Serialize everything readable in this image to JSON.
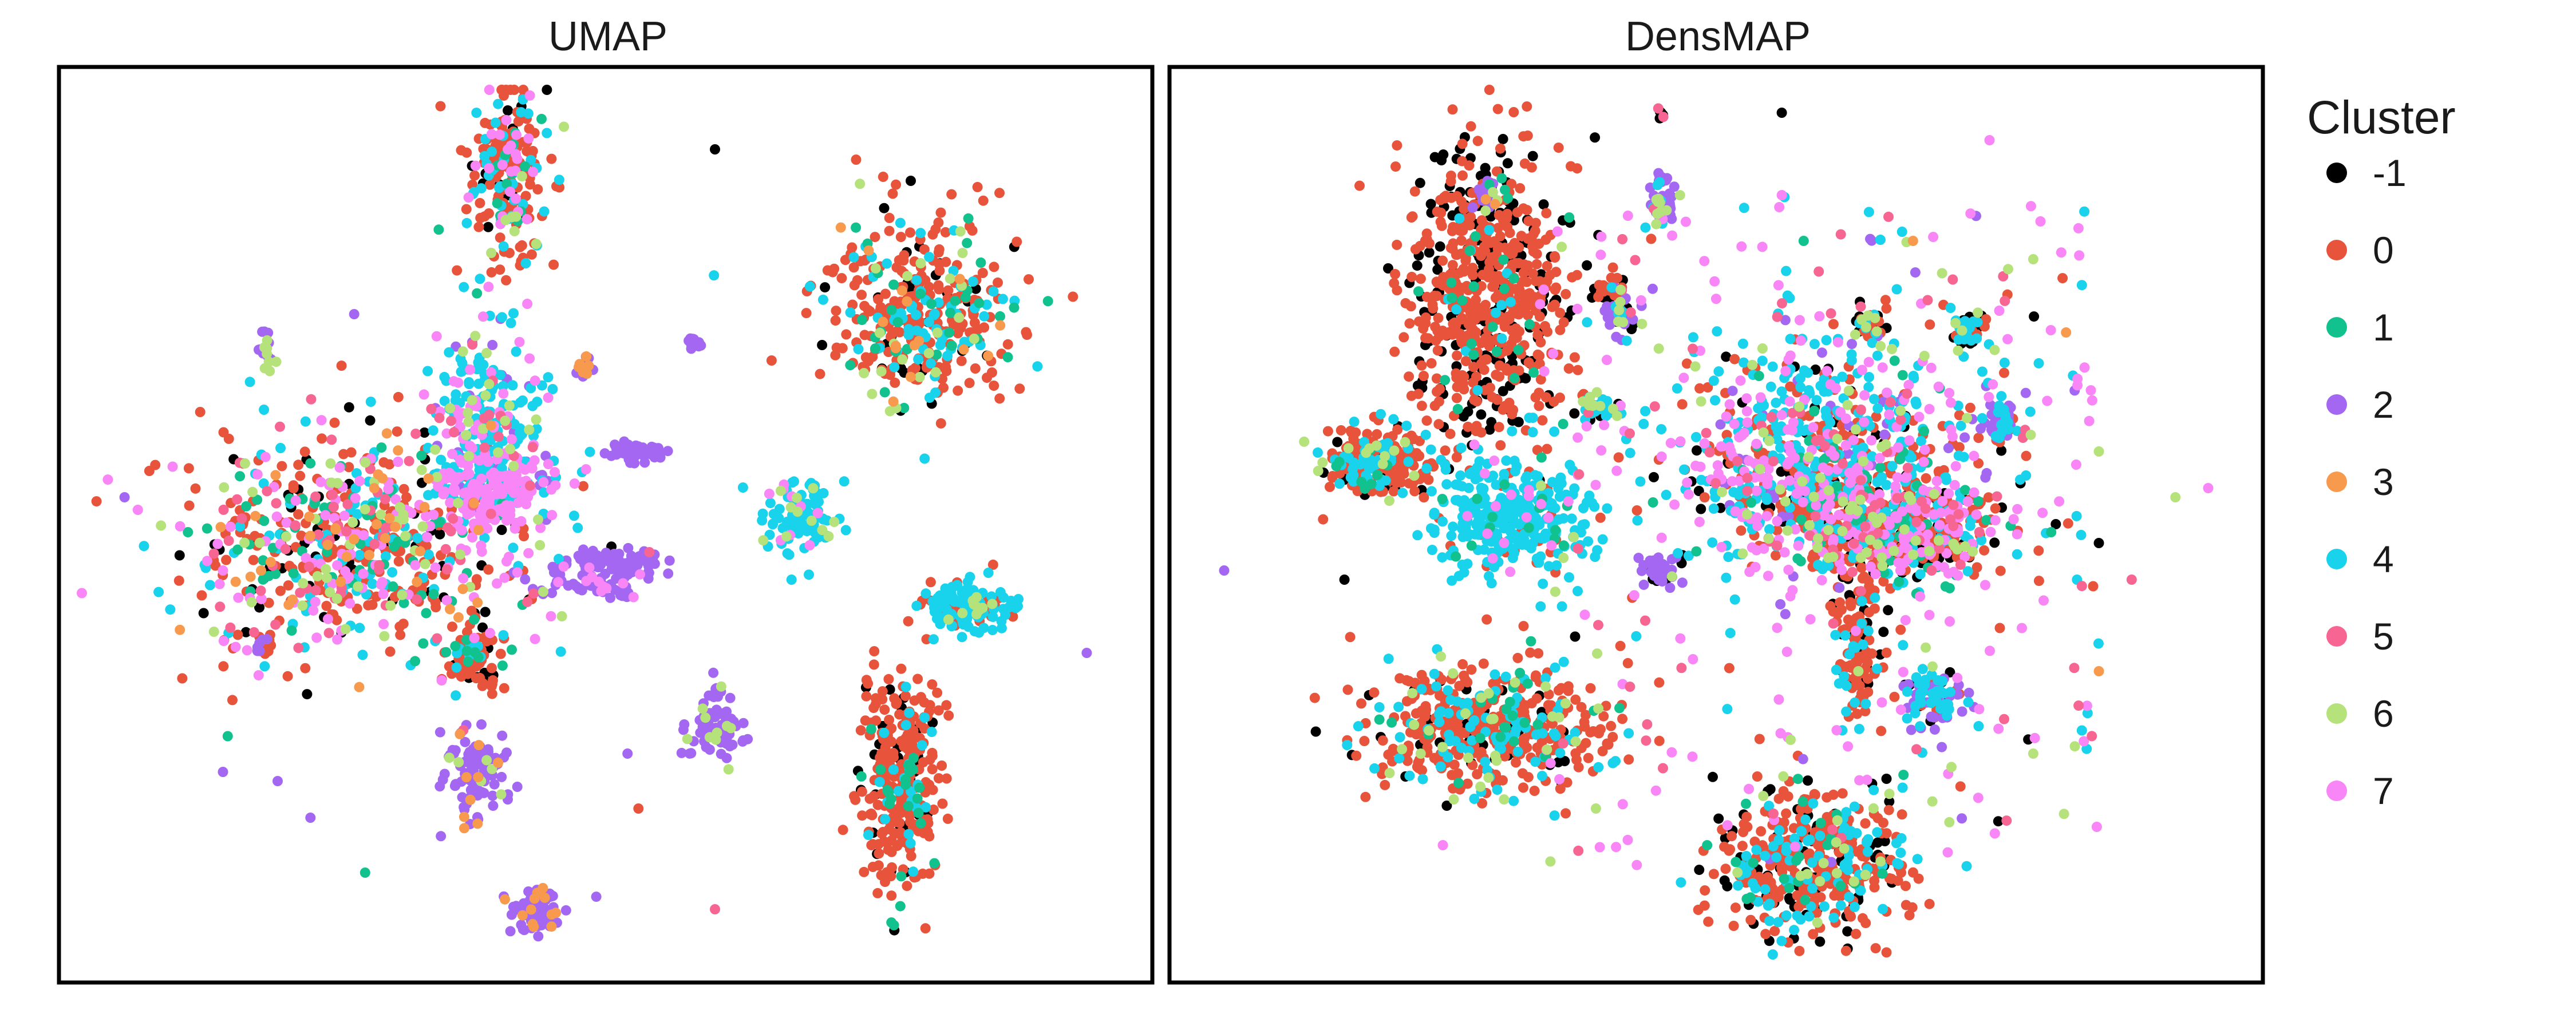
{
  "chart_data": [
    {
      "type": "scatter",
      "title": "UMAP",
      "grid": false,
      "clusters": [
        {
          "center": [
            0.41,
            0.12
          ],
          "spread": [
            0.018,
            0.05
          ],
          "n": 220,
          "mix": {
            "0": 0.5,
            "-1": 0.08,
            "4": 0.2,
            "7": 0.1,
            "1": 0.06,
            "6": 0.06
          }
        },
        {
          "center": [
            0.78,
            0.27
          ],
          "spread": [
            0.045,
            0.05
          ],
          "n": 420,
          "mix": {
            "0": 0.6,
            "-1": 0.08,
            "4": 0.15,
            "1": 0.07,
            "6": 0.05,
            "3": 0.05
          }
        },
        {
          "center": [
            0.27,
            0.52
          ],
          "spread": [
            0.075,
            0.06
          ],
          "n": 700,
          "mix": {
            "0": 0.3,
            "-1": 0.08,
            "4": 0.15,
            "7": 0.15,
            "1": 0.1,
            "5": 0.1,
            "6": 0.06,
            "3": 0.06
          }
        },
        {
          "center": [
            0.4,
            0.46
          ],
          "spread": [
            0.03,
            0.025
          ],
          "n": 220,
          "mix": {
            "7": 0.6,
            "4": 0.3,
            "2": 0.1
          }
        },
        {
          "center": [
            0.39,
            0.38
          ],
          "spread": [
            0.025,
            0.05
          ],
          "n": 220,
          "mix": {
            "4": 0.55,
            "7": 0.15,
            "5": 0.1,
            "6": 0.1,
            "2": 0.1
          }
        },
        {
          "center": [
            0.68,
            0.49
          ],
          "spread": [
            0.016,
            0.018
          ],
          "n": 110,
          "mix": {
            "4": 0.8,
            "6": 0.1,
            "7": 0.1
          }
        },
        {
          "center": [
            0.83,
            0.59
          ],
          "spread": [
            0.022,
            0.015
          ],
          "n": 140,
          "mix": {
            "4": 0.6,
            "0": 0.3,
            "6": 0.1
          }
        },
        {
          "center": [
            0.77,
            0.78
          ],
          "spread": [
            0.018,
            0.06
          ],
          "n": 320,
          "mix": {
            "0": 0.75,
            "-1": 0.1,
            "4": 0.08,
            "1": 0.07
          }
        },
        {
          "center": [
            0.38,
            0.65
          ],
          "spread": [
            0.012,
            0.015
          ],
          "n": 80,
          "mix": {
            "0": 0.7,
            "-1": 0.1,
            "1": 0.1,
            "4": 0.1
          }
        },
        {
          "center": [
            0.38,
            0.77
          ],
          "spread": [
            0.013,
            0.022
          ],
          "n": 110,
          "mix": {
            "2": 0.85,
            "3": 0.08,
            "6": 0.07
          }
        },
        {
          "center": [
            0.6,
            0.72
          ],
          "spread": [
            0.012,
            0.02
          ],
          "n": 80,
          "mix": {
            "2": 0.85,
            "6": 0.15
          }
        },
        {
          "center": [
            0.44,
            0.92
          ],
          "spread": [
            0.012,
            0.015
          ],
          "n": 70,
          "mix": {
            "2": 0.85,
            "3": 0.15
          }
        },
        {
          "center": [
            0.51,
            0.54
          ],
          "spread": [
            0.025,
            0.006
          ],
          "n": 60,
          "mix": {
            "2": 1.0
          }
        },
        {
          "center": [
            0.48,
            0.56
          ],
          "spread": [
            0.03,
            0.01
          ],
          "n": 70,
          "mix": {
            "2": 0.8,
            "7": 0.2
          }
        },
        {
          "center": [
            0.53,
            0.42
          ],
          "spread": [
            0.015,
            0.005
          ],
          "n": 40,
          "mix": {
            "2": 1.0
          }
        },
        {
          "center": [
            0.19,
            0.31
          ],
          "spread": [
            0.004,
            0.01
          ],
          "n": 20,
          "mix": {
            "2": 0.7,
            "6": 0.3
          }
        },
        {
          "center": [
            0.48,
            0.33
          ],
          "spread": [
            0.004,
            0.006
          ],
          "n": 18,
          "mix": {
            "2": 0.7,
            "3": 0.3
          }
        },
        {
          "center": [
            0.58,
            0.3
          ],
          "spread": [
            0.004,
            0.005
          ],
          "n": 12,
          "mix": {
            "2": 1.0
          }
        },
        {
          "center": [
            0.19,
            0.63
          ],
          "spread": [
            0.006,
            0.01
          ],
          "n": 18,
          "mix": {
            "2": 0.6,
            "0": 0.4
          }
        }
      ],
      "outliers": [
        {
          "x": 0.6,
          "y": 0.09,
          "cluster": "-1"
        },
        {
          "x": 0.06,
          "y": 0.47,
          "cluster": "2"
        },
        {
          "x": 0.15,
          "y": 0.55,
          "cluster": "7"
        },
        {
          "x": 0.27,
          "y": 0.27,
          "cluster": "2"
        },
        {
          "x": 0.54,
          "y": 0.53,
          "cluster": "5"
        },
        {
          "x": 0.94,
          "y": 0.64,
          "cluster": "2"
        },
        {
          "x": 0.15,
          "y": 0.77,
          "cluster": "2"
        },
        {
          "x": 0.2,
          "y": 0.78,
          "cluster": "2"
        },
        {
          "x": 0.23,
          "y": 0.82,
          "cluster": "2"
        },
        {
          "x": 0.28,
          "y": 0.88,
          "cluster": "1"
        },
        {
          "x": 0.35,
          "y": 0.67,
          "cluster": "7"
        },
        {
          "x": 0.52,
          "y": 0.75,
          "cluster": "2"
        },
        {
          "x": 0.53,
          "y": 0.81,
          "cluster": "0"
        },
        {
          "x": 0.6,
          "y": 0.92,
          "cluster": "5"
        },
        {
          "x": 0.76,
          "y": 0.68,
          "cluster": "-1"
        },
        {
          "x": 0.45,
          "y": 0.6,
          "cluster": "7"
        },
        {
          "x": 0.67,
          "y": 0.56,
          "cluster": "4"
        },
        {
          "x": 0.46,
          "y": 0.6,
          "cluster": "6"
        }
      ]
    },
    {
      "type": "scatter",
      "title": "DensMAP",
      "grid": false,
      "clusters": [
        {
          "center": [
            0.29,
            0.25
          ],
          "spread": [
            0.035,
            0.08
          ],
          "n": 700,
          "mix": {
            "0": 0.65,
            "-1": 0.3,
            "1": 0.03,
            "4": 0.02
          }
        },
        {
          "center": [
            0.19,
            0.43
          ],
          "spread": [
            0.025,
            0.018
          ],
          "n": 220,
          "mix": {
            "0": 0.55,
            "-1": 0.1,
            "4": 0.25,
            "1": 0.05,
            "6": 0.05
          }
        },
        {
          "center": [
            0.31,
            0.49
          ],
          "spread": [
            0.035,
            0.03
          ],
          "n": 320,
          "mix": {
            "4": 0.85,
            "7": 0.05,
            "1": 0.05,
            "0": 0.05
          }
        },
        {
          "center": [
            0.29,
            0.72
          ],
          "spread": [
            0.055,
            0.035
          ],
          "n": 500,
          "mix": {
            "0": 0.6,
            "-1": 0.1,
            "4": 0.2,
            "1": 0.05,
            "6": 0.05
          }
        },
        {
          "center": [
            0.6,
            0.43
          ],
          "spread": [
            0.065,
            0.06
          ],
          "n": 800,
          "mix": {
            "4": 0.35,
            "7": 0.2,
            "0": 0.2,
            "-1": 0.05,
            "2": 0.05,
            "1": 0.05,
            "6": 0.05,
            "5": 0.05
          }
        },
        {
          "center": [
            0.67,
            0.51
          ],
          "spread": [
            0.05,
            0.025
          ],
          "n": 500,
          "mix": {
            "0": 0.45,
            "-1": 0.15,
            "7": 0.15,
            "4": 0.1,
            "1": 0.05,
            "5": 0.05,
            "6": 0.05
          }
        },
        {
          "center": [
            0.59,
            0.87
          ],
          "spread": [
            0.045,
            0.04
          ],
          "n": 450,
          "mix": {
            "0": 0.55,
            "-1": 0.15,
            "4": 0.2,
            "1": 0.05,
            "6": 0.05
          }
        },
        {
          "center": [
            0.63,
            0.64
          ],
          "spread": [
            0.01,
            0.04
          ],
          "n": 120,
          "mix": {
            "0": 0.6,
            "-1": 0.3,
            "4": 0.1
          }
        },
        {
          "center": [
            0.7,
            0.69
          ],
          "spread": [
            0.012,
            0.015
          ],
          "n": 80,
          "mix": {
            "4": 0.4,
            "2": 0.3,
            "-1": 0.15,
            "0": 0.15
          }
        },
        {
          "center": [
            0.45,
            0.05
          ],
          "spread": [
            0.002,
            0.002
          ],
          "n": 8,
          "mix": {
            "-1": 0.6,
            "5": 0.4
          }
        },
        {
          "center": [
            0.45,
            0.12
          ],
          "spread": [
            0.002,
            0.003
          ],
          "n": 8,
          "mix": {
            "2": 1.0
          }
        },
        {
          "center": [
            0.45,
            0.55
          ],
          "spread": [
            0.01,
            0.008
          ],
          "n": 40,
          "mix": {
            "2": 0.8,
            "-1": 0.2
          }
        },
        {
          "center": [
            0.41,
            0.27
          ],
          "spread": [
            0.008,
            0.012
          ],
          "n": 50,
          "mix": {
            "2": 0.6,
            "4": 0.2,
            "6": 0.1,
            "-1": 0.1
          }
        },
        {
          "center": [
            0.45,
            0.15
          ],
          "spread": [
            0.007,
            0.01
          ],
          "n": 40,
          "mix": {
            "2": 0.6,
            "4": 0.2,
            "6": 0.2
          }
        },
        {
          "center": [
            0.64,
            0.28
          ],
          "spread": [
            0.007,
            0.01
          ],
          "n": 40,
          "mix": {
            "0": 0.4,
            "-1": 0.2,
            "4": 0.2,
            "6": 0.2
          }
        },
        {
          "center": [
            0.73,
            0.29
          ],
          "spread": [
            0.007,
            0.01
          ],
          "n": 40,
          "mix": {
            "4": 0.4,
            "6": 0.2,
            "-1": 0.2,
            "0": 0.2
          }
        },
        {
          "center": [
            0.76,
            0.39
          ],
          "spread": [
            0.01,
            0.015
          ],
          "n": 50,
          "mix": {
            "2": 0.6,
            "4": 0.3,
            "0": 0.1
          }
        },
        {
          "center": [
            0.39,
            0.37
          ],
          "spread": [
            0.008,
            0.008
          ],
          "n": 30,
          "mix": {
            "4": 0.5,
            "-1": 0.2,
            "6": 0.3
          }
        },
        {
          "center": [
            0.4,
            0.24
          ],
          "spread": [
            0.006,
            0.01
          ],
          "n": 24,
          "mix": {
            "0": 0.6,
            "-1": 0.4
          }
        },
        {
          "center": [
            0.29,
            0.14
          ],
          "spread": [
            0.006,
            0.01
          ],
          "n": 24,
          "mix": {
            "2": 0.6,
            "6": 0.2,
            "3": 0.2
          }
        }
      ],
      "outliers": [
        {
          "x": 0.05,
          "y": 0.55,
          "cluster": "2"
        },
        {
          "x": 0.16,
          "y": 0.56,
          "cluster": "-1"
        },
        {
          "x": 0.2,
          "y": 0.22,
          "cluster": "-1"
        },
        {
          "x": 0.85,
          "y": 0.52,
          "cluster": "-1"
        },
        {
          "x": 0.88,
          "y": 0.56,
          "cluster": "5"
        },
        {
          "x": 0.92,
          "y": 0.47,
          "cluster": "6"
        },
        {
          "x": 0.95,
          "y": 0.46,
          "cluster": "7"
        },
        {
          "x": 0.85,
          "y": 0.42,
          "cluster": "6"
        },
        {
          "x": 0.85,
          "y": 0.66,
          "cluster": "3"
        },
        {
          "x": 0.75,
          "y": 0.08,
          "cluster": "7"
        },
        {
          "x": 0.67,
          "y": 0.18,
          "cluster": "4"
        },
        {
          "x": 0.56,
          "y": 0.14,
          "cluster": "7"
        },
        {
          "x": 0.58,
          "y": 0.19,
          "cluster": "1"
        },
        {
          "x": 0.79,
          "y": 0.21,
          "cluster": "6"
        },
        {
          "x": 0.83,
          "y": 0.56,
          "cluster": "4"
        },
        {
          "x": 0.79,
          "y": 0.75,
          "cluster": "6"
        },
        {
          "x": 0.74,
          "y": 0.72,
          "cluster": "4"
        },
        {
          "x": 0.26,
          "y": 0.8,
          "cluster": "6"
        },
        {
          "x": 0.39,
          "y": 0.81,
          "cluster": "6"
        },
        {
          "x": 0.25,
          "y": 0.85,
          "cluster": "7"
        },
        {
          "x": 0.63,
          "y": 0.91,
          "cluster": "-1"
        },
        {
          "x": 0.82,
          "y": 0.29,
          "cluster": "3"
        },
        {
          "x": 0.63,
          "y": 0.66,
          "cluster": "6"
        },
        {
          "x": 0.56,
          "y": 0.05,
          "cluster": "-1"
        },
        {
          "x": 0.68,
          "y": 0.19,
          "cluster": "3"
        },
        {
          "x": 0.4,
          "y": 0.32,
          "cluster": "7"
        },
        {
          "x": 0.36,
          "y": 0.39,
          "cluster": "1"
        }
      ],
      "scatter_noise": {
        "n": 320,
        "box": [
          0.33,
          0.15,
          0.85,
          0.88
        ],
        "mix": {
          "7": 0.4,
          "5": 0.15,
          "4": 0.2,
          "6": 0.1,
          "2": 0.05,
          "0": 0.05,
          "-1": 0.05
        }
      }
    }
  ],
  "legend": {
    "title": "Cluster",
    "entries": [
      {
        "label": "-1",
        "color": "#000000"
      },
      {
        "label": "0",
        "color": "#E8533C"
      },
      {
        "label": "1",
        "color": "#12C28E"
      },
      {
        "label": "2",
        "color": "#A467F2"
      },
      {
        "label": "3",
        "color": "#F89A4E"
      },
      {
        "label": "4",
        "color": "#18D3EB"
      },
      {
        "label": "5",
        "color": "#F76593"
      },
      {
        "label": "6",
        "color": "#B5E27A"
      },
      {
        "label": "7",
        "color": "#F886F6"
      }
    ]
  }
}
